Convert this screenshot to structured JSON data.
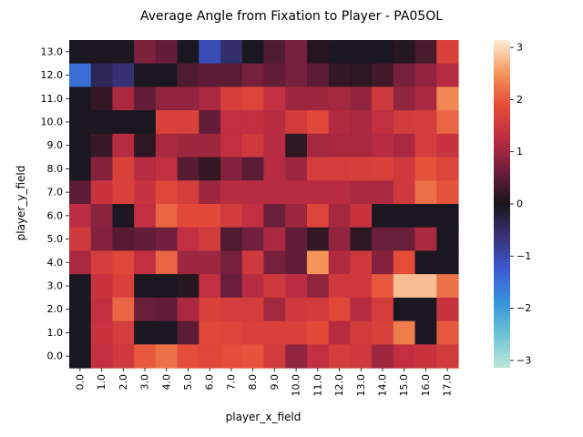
{
  "chart_data": {
    "type": "heatmap",
    "title": "Average Angle from Fixation to Player - PA05OL",
    "xlabel": "player_x_field",
    "ylabel": "player_y_field",
    "x_categories": [
      "0.0",
      "1.0",
      "2.0",
      "3.0",
      "4.0",
      "5.0",
      "6.0",
      "7.0",
      "8.0",
      "9.0",
      "10.0",
      "11.0",
      "12.0",
      "13.0",
      "14.0",
      "15.0",
      "16.0",
      "17.0"
    ],
    "y_categories": [
      "13.0",
      "12.0",
      "11.0",
      "10.0",
      "9.0",
      "8.0",
      "7.0",
      "6.0",
      "5.0",
      "4.0",
      "3.0",
      "2.0",
      "1.0",
      "0.0"
    ],
    "values": [
      [
        -0.05,
        -0.05,
        -0.05,
        0.75,
        0.55,
        -0.05,
        -1.05,
        -0.55,
        -0.05,
        0.4,
        0.7,
        0.1,
        -0.05,
        -0.05,
        -0.05,
        0.1,
        0.35,
        1.7
      ],
      [
        -1.5,
        -0.4,
        -0.6,
        -0.05,
        -0.05,
        0.4,
        0.5,
        0.5,
        0.7,
        0.55,
        0.7,
        0.5,
        0.2,
        0.15,
        0.3,
        0.7,
        0.9,
        1.2
      ],
      [
        -0.05,
        0.2,
        1.1,
        0.55,
        0.9,
        0.9,
        1.1,
        1.65,
        1.75,
        1.35,
        1.0,
        1.0,
        1.05,
        0.9,
        1.5,
        0.9,
        1.1,
        2.4
      ],
      [
        -0.05,
        -0.05,
        -0.05,
        -0.05,
        1.7,
        1.7,
        0.55,
        1.3,
        1.3,
        1.2,
        1.55,
        1.8,
        1.15,
        1.1,
        1.3,
        1.55,
        1.6,
        2.1
      ],
      [
        -0.05,
        0.25,
        1.2,
        0.15,
        1.1,
        1.0,
        1.0,
        1.3,
        1.5,
        1.2,
        0.15,
        1.05,
        1.1,
        1.1,
        1.2,
        1.1,
        1.6,
        1.4
      ],
      [
        -0.05,
        0.8,
        1.7,
        1.2,
        1.3,
        0.45,
        0.2,
        0.8,
        0.5,
        1.2,
        1.0,
        1.6,
        1.6,
        1.65,
        1.7,
        1.5,
        1.95,
        1.75
      ],
      [
        0.5,
        1.4,
        1.7,
        1.4,
        1.8,
        1.6,
        1.0,
        1.2,
        1.2,
        1.2,
        1.2,
        1.2,
        1.2,
        1.1,
        1.1,
        1.5,
        2.2,
        1.95
      ],
      [
        1.25,
        0.85,
        -0.05,
        1.3,
        2.1,
        1.85,
        1.85,
        1.55,
        1.3,
        0.6,
        1.0,
        1.75,
        1.05,
        1.4,
        -0.05,
        -0.05,
        -0.05,
        -0.05
      ],
      [
        1.5,
        0.8,
        0.45,
        0.55,
        0.65,
        1.3,
        1.55,
        0.4,
        0.65,
        1.1,
        0.55,
        0.2,
        0.9,
        0.15,
        0.6,
        0.6,
        1.1,
        -0.05
      ],
      [
        1.1,
        1.6,
        1.8,
        1.3,
        2.1,
        1.0,
        1.0,
        0.7,
        1.5,
        0.7,
        0.55,
        2.5,
        1.15,
        1.5,
        0.8,
        1.9,
        -0.05,
        -0.05
      ],
      [
        -0.05,
        1.4,
        1.7,
        -0.05,
        -0.05,
        0.1,
        1.3,
        0.6,
        1.2,
        1.5,
        1.25,
        0.9,
        1.5,
        1.5,
        2.0,
        2.8,
        2.8,
        2.2
      ],
      [
        -0.05,
        1.3,
        2.1,
        0.6,
        0.55,
        1.1,
        1.7,
        1.6,
        1.6,
        1.05,
        1.5,
        1.55,
        1.8,
        1.2,
        1.6,
        -0.05,
        -0.05,
        1.4
      ],
      [
        -0.05,
        1.4,
        1.6,
        -0.05,
        -0.05,
        0.5,
        1.8,
        1.75,
        1.7,
        1.7,
        1.7,
        1.85,
        1.2,
        1.55,
        1.7,
        2.3,
        -0.05,
        2.0
      ],
      [
        -0.05,
        1.3,
        1.5,
        2.0,
        2.2,
        1.9,
        1.8,
        1.9,
        1.95,
        1.55,
        0.9,
        1.3,
        1.6,
        1.5,
        1.0,
        1.3,
        1.4,
        1.55
      ]
    ],
    "vmin": -3.14159,
    "vmax": 3.14159,
    "colorbar_ticks": [
      "3",
      "2",
      "1",
      "0",
      "−1",
      "−2",
      "−3"
    ],
    "colormap": "icefire",
    "grid": false,
    "legend": "colorbar-right"
  }
}
